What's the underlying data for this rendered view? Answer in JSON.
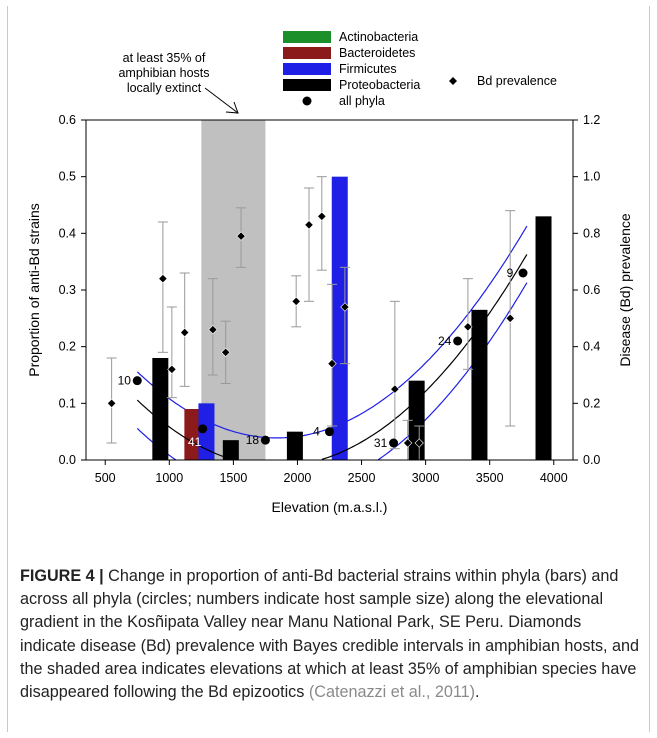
{
  "chart_data": {
    "type": "bar",
    "xlabel": "Elevation (m.a.s.l.)",
    "ylabel_left": "Proportion of anti-Bd strains",
    "ylabel_right": "Disease (Bd) prevalence",
    "xlim": [
      350,
      4150
    ],
    "ylim_left": [
      0,
      0.6
    ],
    "ylim_right": [
      0,
      1.2
    ],
    "xticks": [
      500,
      1000,
      1500,
      2000,
      2500,
      3000,
      3500,
      4000
    ],
    "yticks_left": [
      "0.0",
      "0.1",
      "0.2",
      "0.3",
      "0.4",
      "0.5",
      "0.6"
    ],
    "yticks_right": [
      "0.0",
      "0.2",
      "0.4",
      "0.6",
      "0.8",
      "1.0",
      "1.2"
    ],
    "shaded_region": [
      1250,
      1750
    ],
    "annotation": "at least 35% of amphibian hosts locally extinct",
    "annotation_lines": [
      "at least 35% of",
      "amphibian hosts",
      "locally extinct"
    ],
    "legend": [
      {
        "name": "Actinobacteria",
        "color": "#1a8f2a",
        "kind": "bar"
      },
      {
        "name": "Bacteroidetes",
        "color": "#8b1a1a",
        "kind": "bar"
      },
      {
        "name": "Firmicutes",
        "color": "#1f1fe6",
        "kind": "bar"
      },
      {
        "name": "Proteobacteria",
        "color": "#000000",
        "kind": "bar"
      },
      {
        "name": "all phyla",
        "color": "#000000",
        "kind": "circle"
      },
      {
        "name": "Bd prevalence",
        "color": "#000000",
        "kind": "diamond"
      }
    ],
    "bars": [
      {
        "phylum": "Proteobacteria",
        "x": 930,
        "value": 0.18
      },
      {
        "phylum": "Bacteroidetes",
        "x": 1180,
        "value": 0.09
      },
      {
        "phylum": "Firmicutes",
        "x": 1290,
        "value": 0.1
      },
      {
        "phylum": "Proteobacteria",
        "x": 1480,
        "value": 0.035
      },
      {
        "phylum": "Proteobacteria",
        "x": 1980,
        "value": 0.05
      },
      {
        "phylum": "Firmicutes",
        "x": 2330,
        "value": 0.5
      },
      {
        "phylum": "Proteobacteria",
        "x": 2930,
        "value": 0.14
      },
      {
        "phylum": "Proteobacteria",
        "x": 3420,
        "value": 0.265
      },
      {
        "phylum": "Proteobacteria",
        "x": 3920,
        "value": 0.43
      }
    ],
    "all_phyla": [
      {
        "x": 750,
        "y": 0.14,
        "n": "10"
      },
      {
        "x": 1260,
        "y": 0.055,
        "n": "41"
      },
      {
        "x": 1750,
        "y": 0.035,
        "n": "18"
      },
      {
        "x": 2250,
        "y": 0.05,
        "n": "4"
      },
      {
        "x": 2750,
        "y": 0.03,
        "n": "31"
      },
      {
        "x": 3250,
        "y": 0.21,
        "n": "24"
      },
      {
        "x": 3760,
        "y": 0.33,
        "n": "9"
      }
    ],
    "bd_prevalence": [
      {
        "x": 550,
        "y": 0.2,
        "lo": 0.06,
        "hi": 0.36
      },
      {
        "x": 950,
        "y": 0.64,
        "lo": 0.38,
        "hi": 0.84
      },
      {
        "x": 1020,
        "y": 0.32,
        "lo": 0.22,
        "hi": 0.54
      },
      {
        "x": 1120,
        "y": 0.45,
        "lo": 0.26,
        "hi": 0.66
      },
      {
        "x": 1340,
        "y": 0.46,
        "lo": 0.3,
        "hi": 0.64
      },
      {
        "x": 1440,
        "y": 0.38,
        "lo": 0.27,
        "hi": 0.49
      },
      {
        "x": 1560,
        "y": 0.79,
        "lo": 0.68,
        "hi": 0.89
      },
      {
        "x": 1990,
        "y": 0.56,
        "lo": 0.47,
        "hi": 0.65
      },
      {
        "x": 2090,
        "y": 0.83,
        "lo": 0.56,
        "hi": 0.96
      },
      {
        "x": 2190,
        "y": 0.86,
        "lo": 0.67,
        "hi": 1.0
      },
      {
        "x": 2270,
        "y": 0.34,
        "lo": 0.12,
        "hi": 0.62
      },
      {
        "x": 2370,
        "y": 0.54,
        "lo": 0.34,
        "hi": 0.68
      },
      {
        "x": 2760,
        "y": 0.25,
        "lo": 0.04,
        "hi": 0.56
      },
      {
        "x": 2860,
        "y": 0.06,
        "lo": 0.0,
        "hi": 0.14
      },
      {
        "x": 2950,
        "y": 0.06,
        "lo": 0.0,
        "hi": 0.12
      },
      {
        "x": 3330,
        "y": 0.47,
        "lo": 0.32,
        "hi": 0.64
      },
      {
        "x": 3660,
        "y": 0.5,
        "lo": 0.12,
        "hi": 0.88
      }
    ],
    "fit_coefficients": {
      "a": 0.3217,
      "b": -0.0003617,
      "c": 9.83e-08
    },
    "ci_band_offset": 0.05
  },
  "caption": {
    "label": "FIGURE 4 |",
    "text": " Change in proportion of anti-Bd bacterial strains within phyla (bars) and across all phyla (circles; numbers indicate host sample size) along the elevational gradient in the Kosñipata Valley near Manu National Park, SE Peru. Diamonds indicate disease (Bd) prevalence with Bayes credible intervals in amphibian hosts, and the shaded area indicates elevations at which at least 35% of amphibian species have disappeared following the Bd epizootics ",
    "reference": "(Catenazzi et al., 2011)",
    "end": "."
  }
}
